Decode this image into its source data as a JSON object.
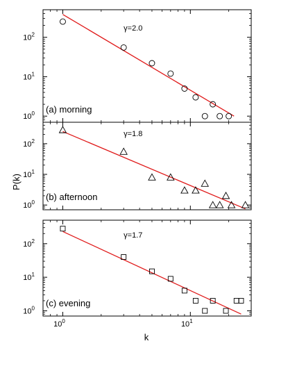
{
  "figure": {
    "xlabel": "k",
    "ylabel": "P(k)"
  },
  "chart_data": [
    {
      "type": "scatter",
      "panel_label": "(a) morning",
      "fit_label": "γ=2.0",
      "marker": "circle",
      "x_scale": "log",
      "y_scale": "log",
      "xlim": [
        0.7,
        30
      ],
      "ylim": [
        0.7,
        500
      ],
      "x_ticks": [
        1,
        10
      ],
      "y_ticks": [
        1,
        10,
        100
      ],
      "series": [
        {
          "x": [
            1,
            3,
            5,
            7,
            9,
            11,
            13,
            15,
            17,
            20
          ],
          "y": [
            250,
            55,
            22,
            12,
            5,
            3,
            1,
            2,
            1,
            1
          ]
        }
      ],
      "fit_line": {
        "x": [
          1,
          22
        ],
        "y": [
          380,
          1.0
        ]
      },
      "line_color": "#e01b1b"
    },
    {
      "type": "scatter",
      "panel_label": "(b) afternoon",
      "fit_label": "γ=1.8",
      "marker": "triangle",
      "x_scale": "log",
      "y_scale": "log",
      "xlim": [
        0.7,
        30
      ],
      "ylim": [
        0.7,
        500
      ],
      "x_ticks": [
        1,
        10
      ],
      "y_ticks": [
        1,
        10,
        100
      ],
      "series": [
        {
          "x": [
            1,
            3,
            5,
            7,
            9,
            11,
            13,
            15,
            17,
            19,
            21,
            27
          ],
          "y": [
            280,
            55,
            8,
            8,
            3,
            3,
            5,
            1,
            1,
            2,
            1,
            1
          ]
        }
      ],
      "fit_line": {
        "x": [
          1,
          27
        ],
        "y": [
          250,
          0.75
        ]
      },
      "line_color": "#e01b1b"
    },
    {
      "type": "scatter",
      "panel_label": "(c) evening",
      "fit_label": "γ=1.7",
      "marker": "square",
      "x_scale": "log",
      "y_scale": "log",
      "xlim": [
        0.7,
        30
      ],
      "ylim": [
        0.7,
        500
      ],
      "x_ticks": [
        1,
        10
      ],
      "y_ticks": [
        1,
        10,
        100
      ],
      "series": [
        {
          "x": [
            1,
            3,
            5,
            7,
            9,
            11,
            13,
            15,
            19,
            23,
            25
          ],
          "y": [
            280,
            40,
            15,
            9,
            4,
            2,
            1,
            2,
            1,
            2,
            2
          ]
        }
      ],
      "fit_line": {
        "x": [
          1,
          25
        ],
        "y": [
          230,
          0.8
        ]
      },
      "line_color": "#e01b1b"
    }
  ]
}
